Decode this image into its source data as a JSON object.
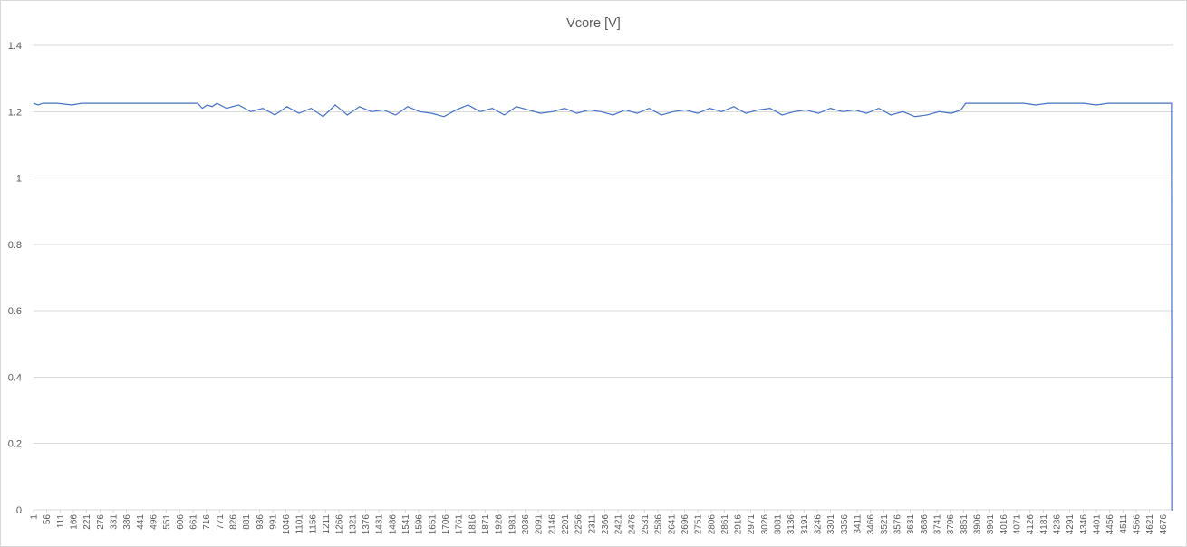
{
  "chart_data": {
    "type": "line",
    "title": "Vcore [V]",
    "xlabel": "",
    "ylabel": "",
    "ylim": [
      0,
      1.4
    ],
    "yticks": [
      0,
      0.2,
      0.4,
      0.6,
      0.8,
      1,
      1.2,
      1.4
    ],
    "grid": true,
    "legend": "none",
    "line_color": "#4472c4",
    "gridline_color": "#d9d9d9",
    "text_color": "#595959",
    "x_range": [
      1,
      4720
    ],
    "x_tick_labels": [
      "1",
      "56",
      "111",
      "166",
      "221",
      "276",
      "331",
      "386",
      "441",
      "496",
      "551",
      "606",
      "661",
      "716",
      "771",
      "826",
      "881",
      "936",
      "991",
      "1046",
      "1101",
      "1156",
      "1211",
      "1266",
      "1321",
      "1376",
      "1431",
      "1486",
      "1541",
      "1596",
      "1651",
      "1706",
      "1761",
      "1816",
      "1871",
      "1926",
      "1981",
      "2036",
      "2091",
      "2146",
      "2201",
      "2256",
      "2311",
      "2366",
      "2421",
      "2476",
      "2531",
      "2586",
      "2641",
      "2696",
      "2751",
      "2806",
      "2861",
      "2916",
      "2971",
      "3026",
      "3081",
      "3136",
      "3191",
      "3246",
      "3301",
      "3356",
      "3411",
      "3466",
      "3521",
      "3576",
      "3631",
      "3686",
      "3741",
      "3796",
      "3851",
      "3906",
      "3961",
      "4016",
      "4071",
      "4126",
      "4181",
      "4236",
      "4291",
      "4346",
      "4401",
      "4456",
      "4511",
      "4566",
      "4621",
      "4676"
    ],
    "series": [
      {
        "name": "",
        "x": [
          1,
          20,
          40,
          60,
          100,
          160,
          200,
          260,
          320,
          380,
          440,
          500,
          560,
          620,
          680,
          700,
          720,
          740,
          760,
          800,
          850,
          900,
          950,
          1000,
          1050,
          1100,
          1150,
          1200,
          1250,
          1300,
          1350,
          1400,
          1450,
          1500,
          1550,
          1600,
          1650,
          1700,
          1750,
          1800,
          1850,
          1900,
          1950,
          2000,
          2050,
          2100,
          2150,
          2200,
          2250,
          2300,
          2350,
          2400,
          2450,
          2500,
          2550,
          2600,
          2650,
          2700,
          2750,
          2800,
          2850,
          2900,
          2950,
          3000,
          3050,
          3100,
          3150,
          3200,
          3250,
          3300,
          3350,
          3400,
          3450,
          3500,
          3550,
          3600,
          3650,
          3700,
          3750,
          3800,
          3840,
          3860,
          3900,
          3950,
          4000,
          4050,
          4100,
          4150,
          4200,
          4250,
          4300,
          4350,
          4400,
          4450,
          4500,
          4550,
          4600,
          4650,
          4700,
          4712,
          4713,
          4720
        ],
        "y": [
          1.225,
          1.22,
          1.225,
          1.225,
          1.225,
          1.22,
          1.225,
          1.225,
          1.225,
          1.225,
          1.225,
          1.225,
          1.225,
          1.225,
          1.225,
          1.21,
          1.22,
          1.215,
          1.225,
          1.21,
          1.22,
          1.2,
          1.21,
          1.19,
          1.215,
          1.195,
          1.21,
          1.185,
          1.22,
          1.19,
          1.215,
          1.2,
          1.205,
          1.19,
          1.215,
          1.2,
          1.195,
          1.185,
          1.205,
          1.22,
          1.2,
          1.21,
          1.19,
          1.215,
          1.205,
          1.195,
          1.2,
          1.21,
          1.195,
          1.205,
          1.2,
          1.19,
          1.205,
          1.195,
          1.21,
          1.19,
          1.2,
          1.205,
          1.195,
          1.21,
          1.2,
          1.215,
          1.195,
          1.205,
          1.21,
          1.19,
          1.2,
          1.205,
          1.195,
          1.21,
          1.2,
          1.205,
          1.195,
          1.21,
          1.19,
          1.2,
          1.185,
          1.19,
          1.2,
          1.195,
          1.205,
          1.225,
          1.225,
          1.225,
          1.225,
          1.225,
          1.225,
          1.22,
          1.225,
          1.225,
          1.225,
          1.225,
          1.22,
          1.225,
          1.225,
          1.225,
          1.225,
          1.225,
          1.225,
          1.225,
          0,
          0
        ]
      }
    ]
  }
}
